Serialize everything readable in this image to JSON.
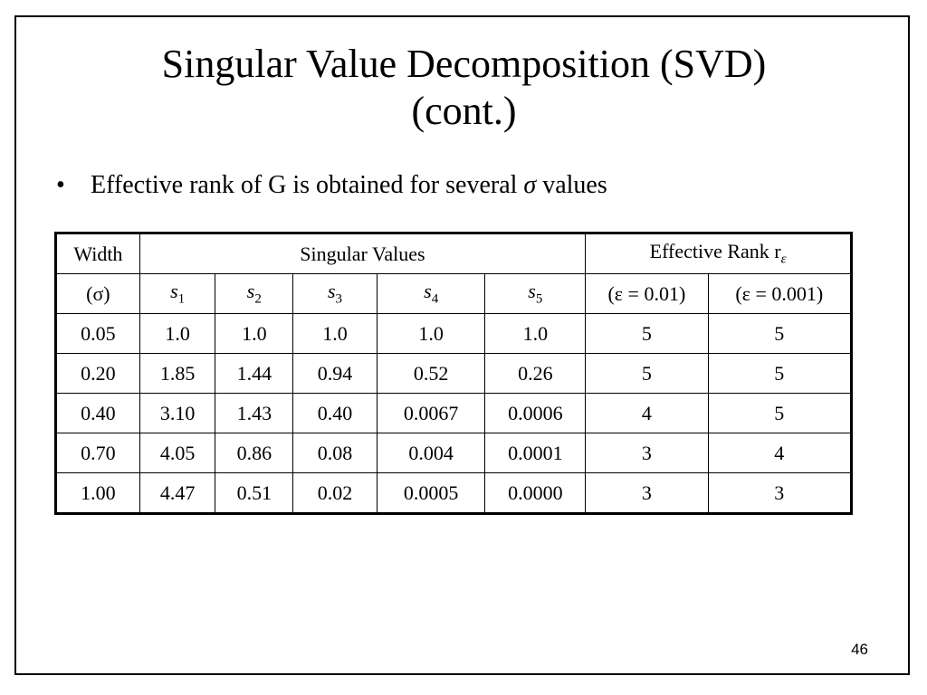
{
  "title": {
    "line1": "Singular Value Decomposition (SVD)",
    "line2": "(cont.)"
  },
  "bullet": {
    "marker": "•",
    "text_before": "Effective rank of G is obtained for several",
    "symbol": "σ",
    "text_after": "values"
  },
  "table": {
    "width_header": "Width",
    "sigma_header": "(σ)",
    "sv_header": "Singular Values",
    "er_header": "Effective Rank r",
    "er_header_sub": "ε",
    "sv_cols": [
      {
        "base": "s",
        "sub": "1"
      },
      {
        "base": "s",
        "sub": "2"
      },
      {
        "base": "s",
        "sub": "3"
      },
      {
        "base": "s",
        "sub": "4"
      },
      {
        "base": "s",
        "sub": "5"
      }
    ],
    "er_cols": [
      "(ε = 0.01)",
      "(ε = 0.001)"
    ],
    "rows": [
      [
        "0.05",
        "1.0",
        "1.0",
        "1.0",
        "1.0",
        "1.0",
        "5",
        "5"
      ],
      [
        "0.20",
        "1.85",
        "1.44",
        "0.94",
        "0.52",
        "0.26",
        "5",
        "5"
      ],
      [
        "0.40",
        "3.10",
        "1.43",
        "0.40",
        "0.0067",
        "0.0006",
        "4",
        "5"
      ],
      [
        "0.70",
        "4.05",
        "0.86",
        "0.08",
        "0.004",
        "0.0001",
        "3",
        "4"
      ],
      [
        "1.00",
        "4.47",
        "0.51",
        "0.02",
        "0.0005",
        "0.0000",
        "3",
        "3"
      ]
    ]
  },
  "page_number": "46"
}
